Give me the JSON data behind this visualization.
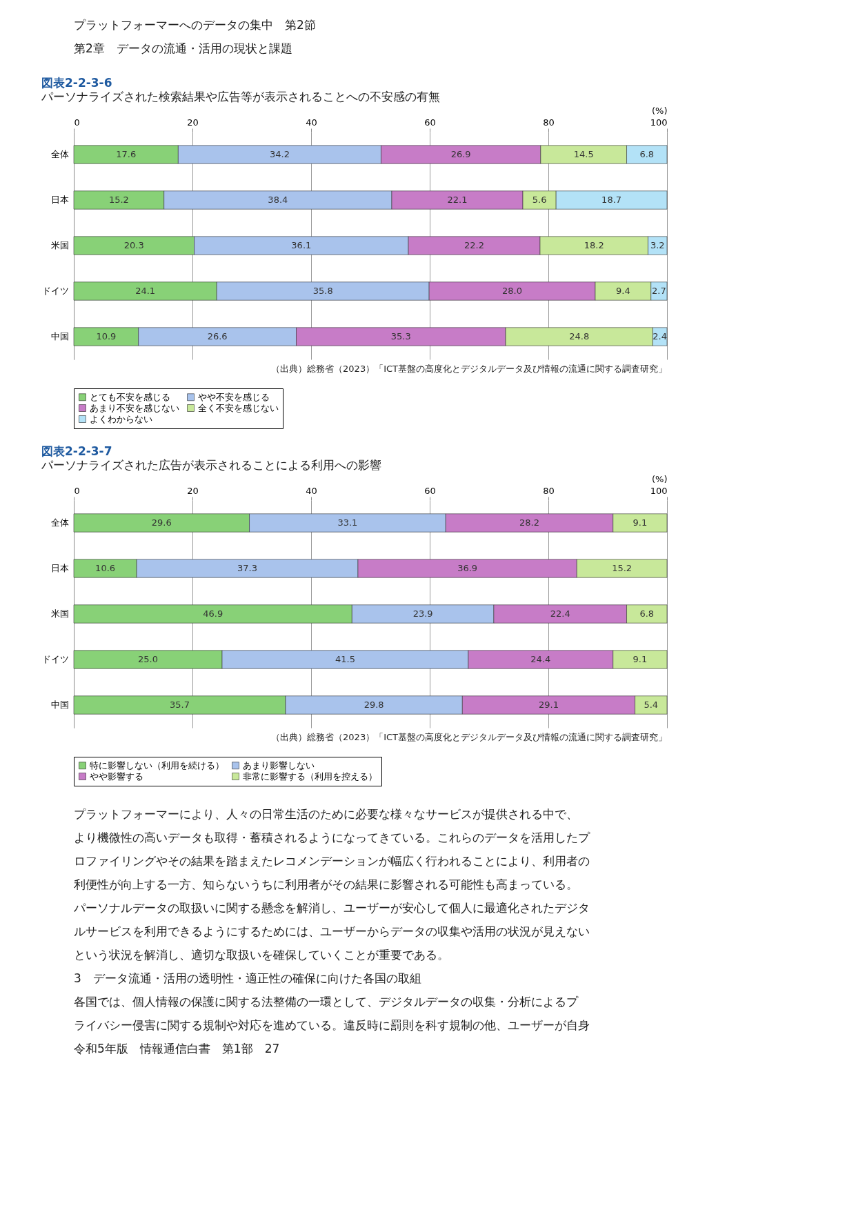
{
  "chart_data": [
    {
      "type": "other",
      "annotations": [
        "プラットフォーマーへのデータの集中　第2節",
        "第2章　データの流通・活用の現状と課題"
      ]
    },
    {
      "type": "bar",
      "orientation": "horizontal",
      "stacked": true,
      "title": "図表2-2-3-6",
      "subtitle": "パーソナライズされた検索結果や広告等が表示されることへの不安感の有無",
      "xlabel": "(%)",
      "categories": [
        "全体",
        "日本",
        "米国",
        "ドイツ",
        "中国"
      ],
      "xlim": [
        0,
        100
      ],
      "xticks": [
        0,
        20,
        40,
        60,
        80,
        100
      ],
      "grid": "x",
      "legend": "bottom",
      "series": [
        {
          "name": "とても不安を感じる",
          "color": "#88d177",
          "values": [
            17.6,
            15.2,
            20.3,
            24.1,
            10.9
          ],
          "value_labels": [
            "17.6",
            "15.2",
            "20.3",
            "24.1",
            "10.9"
          ]
        },
        {
          "name": "やや不安を感じる",
          "color": "#a9c3ec",
          "values": [
            34.2,
            38.4,
            36.1,
            35.8,
            26.6
          ],
          "value_labels": [
            "34.2",
            "38.4",
            "36.1",
            "35.8",
            "26.6"
          ]
        },
        {
          "name": "あまり不安を感じない",
          "color": "#c77cc7",
          "values": [
            26.9,
            22.1,
            22.2,
            28.0,
            35.3
          ],
          "value_labels": [
            "26.9",
            "22.1",
            "22.2",
            "28.0",
            "35.3"
          ]
        },
        {
          "name": "全く不安を感じない",
          "color": "#c8e89a",
          "values": [
            14.5,
            5.6,
            18.2,
            9.4,
            24.8
          ],
          "value_labels": [
            "14.5",
            "5.6",
            "18.2",
            "9.4",
            "24.8"
          ]
        },
        {
          "name": "よくわからない",
          "color": "#b3e2f7",
          "values": [
            6.8,
            18.7,
            3.2,
            2.7,
            2.4
          ],
          "value_labels": [
            "6.8",
            "18.7",
            "3.2",
            "2.7",
            "2.4"
          ]
        }
      ],
      "annotations": [
        "（出典）総務省（2023）「ICT基盤の高度化とデジタルデータ及び情報の流通に関する調査研究」"
      ]
    },
    {
      "type": "bar",
      "orientation": "horizontal",
      "stacked": true,
      "title": "図表2-2-3-7",
      "subtitle": "パーソナライズされた広告が表示されることによる利用への影響",
      "xlabel": "(%)",
      "categories": [
        "全体",
        "日本",
        "米国",
        "ドイツ",
        "中国"
      ],
      "xlim": [
        0,
        100
      ],
      "xticks": [
        0,
        20,
        40,
        60,
        80,
        100
      ],
      "grid": "x",
      "legend": "bottom",
      "series": [
        {
          "name": "特に影響しない（利用を続ける）",
          "color": "#88d177",
          "values": [
            29.6,
            10.6,
            46.9,
            25.0,
            35.7
          ],
          "value_labels": [
            "29.6",
            "10.6",
            "46.9",
            "25.0",
            "35.7"
          ]
        },
        {
          "name": "あまり影響しない",
          "color": "#a9c3ec",
          "values": [
            33.1,
            37.3,
            23.9,
            41.5,
            29.8
          ],
          "value_labels": [
            "33.1",
            "37.3",
            "23.9",
            "41.5",
            "29.8"
          ]
        },
        {
          "name": "やや影響する",
          "color": "#c77cc7",
          "values": [
            28.2,
            36.9,
            22.4,
            24.4,
            29.1
          ],
          "value_labels": [
            "28.2",
            "36.9",
            "22.4",
            "24.4",
            "29.1"
          ]
        },
        {
          "name": "非常に影響する（利用を控える）",
          "color": "#c8e89a",
          "values": [
            9.1,
            15.2,
            6.8,
            9.1,
            5.4
          ],
          "value_labels": [
            "9.1",
            "15.2",
            "6.8",
            "9.1",
            "5.4"
          ]
        }
      ],
      "annotations": [
        "（出典）総務省（2023）「ICT基盤の高度化とデジタルデータ及び情報の流通に関する調査研究」"
      ]
    },
    {
      "type": "other",
      "annotations": [
        "　プラットフォーマーにより、人々の日常生活のために必要な様々なサービスが提供される中で、",
        "より機微性の高いデータも取得・蓄積されるようになってきている。これらのデータを活用したプ",
        "ロファイリングやその結果を踏まえたレコメンデーションが幅広く行われることにより、利用者の",
        "利便性が向上する一方、知らないうちに利用者がその結果に影響される可能性も高まっている。",
        "パーソナルデータの取扱いに関する懸念を解消し、ユーザーが安心して個人に最適化されたデジタ",
        "ルサービスを利用できるようにするためには、ユーザーからデータの収集や活用の状況が見えない",
        "という状況を解消し、適切な取扱いを確保していくことが重要である。",
        "3　データ流通・活用の透明性・適正性の確保に向けた各国の取組",
        "　各国では、個人情報の保護に関する法整備の一環として、デジタルデータの収集・分析によるプ",
        "ライバシー侵害に関する規制や対応を進めている。違反時に罰則を科す規制の他、ユーザーが自身",
        "令和5年版　情報通信白書　第1部　27"
      ]
    }
  ]
}
